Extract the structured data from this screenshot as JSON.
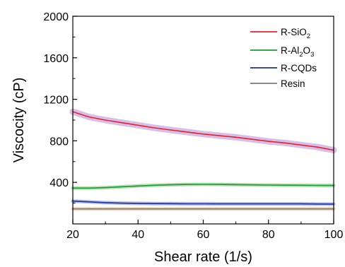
{
  "chart_data": {
    "type": "line",
    "xlabel": "Shear rate (1/s)",
    "ylabel": "Viscocity (cP)",
    "xlim": [
      20,
      100
    ],
    "ylim": [
      0,
      2000
    ],
    "x_ticks": [
      20,
      40,
      60,
      80,
      100
    ],
    "y_ticks": [
      400,
      800,
      1200,
      1600,
      2000
    ],
    "grid": false,
    "legend_position": "top-right",
    "x": [
      20,
      25,
      30,
      35,
      40,
      45,
      50,
      55,
      60,
      65,
      70,
      75,
      80,
      85,
      90,
      95,
      100
    ],
    "series": [
      {
        "name_parts": [
          [
            "R-SiO",
            "n"
          ],
          [
            "2",
            "sub"
          ]
        ],
        "color": "#e8202a",
        "band_color": "#c9a8e0",
        "values": [
          1080,
          1030,
          1000,
          975,
          950,
          925,
          905,
          885,
          865,
          850,
          835,
          815,
          795,
          780,
          760,
          740,
          710
        ]
      },
      {
        "name_parts": [
          [
            "R-Al",
            "n"
          ],
          [
            "2",
            "sub"
          ],
          [
            "O",
            "n"
          ],
          [
            "3",
            "sub"
          ]
        ],
        "color": "#1f9a2e",
        "band_color": "#9ad39b",
        "values": [
          345,
          345,
          350,
          358,
          365,
          372,
          377,
          380,
          381,
          380,
          378,
          376,
          374,
          373,
          372,
          371,
          370
        ]
      },
      {
        "name_parts": [
          [
            "R-CQDs",
            "n"
          ]
        ],
        "color": "#1c2f9c",
        "band_color": "#9aa6dc",
        "values": [
          220,
          212,
          205,
          200,
          198,
          196,
          195,
          194,
          194,
          193,
          193,
          193,
          193,
          193,
          193,
          192,
          191
        ]
      },
      {
        "name_parts": [
          [
            "Resin",
            "n"
          ]
        ],
        "color": "#7a7a7a",
        "band_color": "#e6c49a",
        "values": [
          145,
          145,
          145,
          145,
          145,
          145,
          145,
          145,
          145,
          145,
          145,
          145,
          145,
          145,
          145,
          145,
          145
        ]
      }
    ]
  }
}
